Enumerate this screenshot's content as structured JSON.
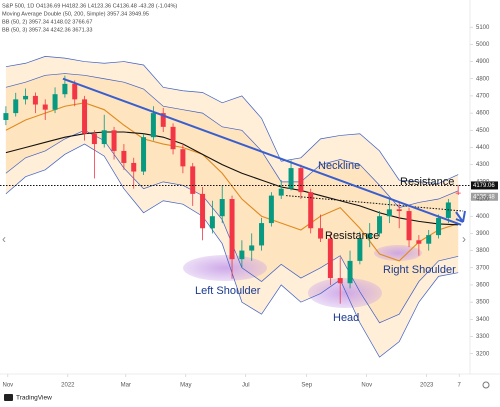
{
  "chart_data": {
    "type": "candlestick",
    "header": [
      "S&P 500, 1D  O4136.69  H4182.36  L4123.36  C4136.48  -43.28 (-1.04%)",
      "Moving Average Double (50, 200, Simple)  3957.34  3949.95",
      "BB (50, 2)  3957.34  4148.02  3766.67",
      "BB (50, 3)  3957.34  4242.36  3671.33"
    ],
    "brand": "TradingView",
    "up_color": "#089981",
    "down_color": "#f23645",
    "x": [
      15,
      25,
      35,
      45,
      55,
      65,
      75,
      85,
      95,
      105,
      115,
      125,
      135,
      145,
      155,
      165,
      175,
      185,
      195,
      205,
      215,
      225,
      235,
      245,
      255,
      265,
      275,
      285,
      295,
      305,
      315,
      325,
      335,
      345,
      355,
      365,
      375,
      385,
      395,
      405,
      415,
      425,
      435,
      445,
      455,
      465,
      475
    ],
    "open": [
      4560,
      4600,
      4680,
      4700,
      4650,
      4620,
      4710,
      4770,
      4680,
      4480,
      4420,
      4500,
      4380,
      4310,
      4260,
      4460,
      4600,
      4520,
      4390,
      4290,
      4130,
      3930,
      4000,
      4100,
      3750,
      3800,
      3830,
      3960,
      4120,
      4160,
      4280,
      4140,
      3930,
      3870,
      3640,
      3610,
      3740,
      3870,
      3900,
      4000,
      4040,
      4030,
      3860,
      3840,
      3890,
      3990,
      4136.69
    ],
    "high": [
      4640,
      4718,
      4743,
      4720,
      4680,
      4750,
      4818,
      4790,
      4700,
      4500,
      4590,
      4520,
      4420,
      4340,
      4480,
      4640,
      4630,
      4540,
      4420,
      4310,
      4170,
      4090,
      4180,
      4120,
      3860,
      3900,
      3990,
      4140,
      4210,
      4325,
      4300,
      4160,
      4010,
      3900,
      3760,
      3800,
      3910,
      3960,
      4030,
      4100,
      4080,
      4050,
      3890,
      3920,
      4010,
      4100,
      4182.36
    ],
    "low": [
      4530,
      4580,
      4650,
      4600,
      4560,
      4600,
      4690,
      4640,
      4440,
      4220,
      4400,
      4330,
      4270,
      4160,
      4240,
      4440,
      4490,
      4360,
      4250,
      4060,
      3860,
      3900,
      3960,
      3636,
      3700,
      3740,
      3800,
      3940,
      4100,
      4150,
      4100,
      3900,
      3850,
      3600,
      3491,
      3580,
      3720,
      3820,
      3880,
      3960,
      3930,
      3820,
      3770,
      3800,
      3870,
      3960,
      4123.36
    ],
    "close": [
      4600,
      4680,
      4700,
      4650,
      4620,
      4710,
      4770,
      4680,
      4480,
      4420,
      4500,
      4380,
      4310,
      4260,
      4460,
      4600,
      4520,
      4390,
      4290,
      4130,
      3930,
      4000,
      4100,
      3750,
      3800,
      3830,
      3960,
      4120,
      4160,
      4280,
      4140,
      3930,
      3870,
      3640,
      3610,
      3740,
      3870,
      3900,
      4000,
      4040,
      4030,
      3860,
      3840,
      3890,
      3990,
      4080,
      4136.48
    ],
    "line_x": [
      15,
      35,
      55,
      75,
      95,
      115,
      135,
      155,
      175,
      195,
      215,
      235,
      255,
      275,
      295,
      315,
      335,
      355,
      375,
      395,
      415,
      435,
      455,
      475
    ],
    "lines": [
      {
        "color": "#3d5fc4",
        "values": [
          4870,
          4890,
          4930,
          4920,
          4900,
          4890,
          4900,
          4880,
          4750,
          4730,
          4720,
          4660,
          4700,
          4570,
          4320,
          4340,
          4450,
          4470,
          4480,
          4380,
          4210,
          4200,
          4190,
          4242.36
        ]
      },
      {
        "color": "#3d5fc4",
        "values": [
          4130,
          4230,
          4270,
          4360,
          4420,
          4350,
          4160,
          4020,
          4090,
          4070,
          4000,
          3840,
          3500,
          3430,
          3600,
          3500,
          3550,
          3630,
          3380,
          3180,
          3270,
          3500,
          3650,
          3671.33
        ]
      },
      {
        "color": "#3d5fc4",
        "values": [
          4750,
          4780,
          4820,
          4830,
          4820,
          4800,
          4780,
          4740,
          4640,
          4620,
          4600,
          4520,
          4500,
          4380,
          4200,
          4200,
          4300,
          4330,
          4300,
          4180,
          4050,
          4080,
          4100,
          4148.02
        ]
      },
      {
        "color": "#3d5fc4",
        "values": [
          4250,
          4340,
          4380,
          4450,
          4500,
          4440,
          4280,
          4160,
          4200,
          4180,
          4120,
          3980,
          3700,
          3620,
          3720,
          3640,
          3700,
          3770,
          3560,
          3380,
          3430,
          3620,
          3740,
          3766.67
        ]
      },
      {
        "color": "#e08a1e",
        "values": [
          4500,
          4560,
          4600,
          4640,
          4660,
          4620,
          4530,
          4450,
          4420,
          4400,
          4360,
          4250,
          4100,
          4000,
          3960,
          3920,
          4000,
          4050,
          3930,
          3780,
          3740,
          3850,
          3920,
          3957.34
        ]
      },
      {
        "color": "#111111",
        "values": [
          4370,
          4400,
          4430,
          4460,
          4480,
          4490,
          4490,
          4480,
          4460,
          4420,
          4360,
          4300,
          4250,
          4210,
          4170,
          4150,
          4120,
          4090,
          4060,
          4020,
          3990,
          3970,
          3955,
          3949.95
        ]
      }
    ],
    "band_fill": "#ffd9a8",
    "neckline": {
      "x": [
        73,
        478
      ],
      "y": [
        4800,
        3950
      ],
      "color": "#3a5fcd"
    },
    "resistance_level": 4179.06,
    "resistance_slope": {
      "x": [
        300,
        480
      ],
      "y": [
        4120,
        4030
      ]
    },
    "last_price": 4136.48,
    "annotations": [
      "Neckline",
      "Resistance",
      "Resistance",
      "Left Shoulder",
      "Head",
      "Right Shoulder"
    ],
    "xlim": [
      9,
      487
    ],
    "xticks": [
      {
        "value": 17,
        "label": "Nov"
      },
      {
        "value": 78,
        "label": "2022"
      },
      {
        "value": 137,
        "label": "Mar"
      },
      {
        "value": 198,
        "label": "May"
      },
      {
        "value": 259,
        "label": "Jul"
      },
      {
        "value": 321,
        "label": "Sep"
      },
      {
        "value": 382,
        "label": "Nov"
      },
      {
        "value": 443,
        "label": "2023"
      },
      {
        "value": 476,
        "label": "7"
      }
    ],
    "ylim": [
      3140,
      5200
    ],
    "yticks": [
      3200,
      3300,
      3400,
      3500,
      3600,
      3700,
      3800,
      3900,
      4000,
      4100,
      4200,
      4300,
      4400,
      4500,
      4600,
      4700,
      4800,
      4900,
      5000,
      5100
    ]
  }
}
